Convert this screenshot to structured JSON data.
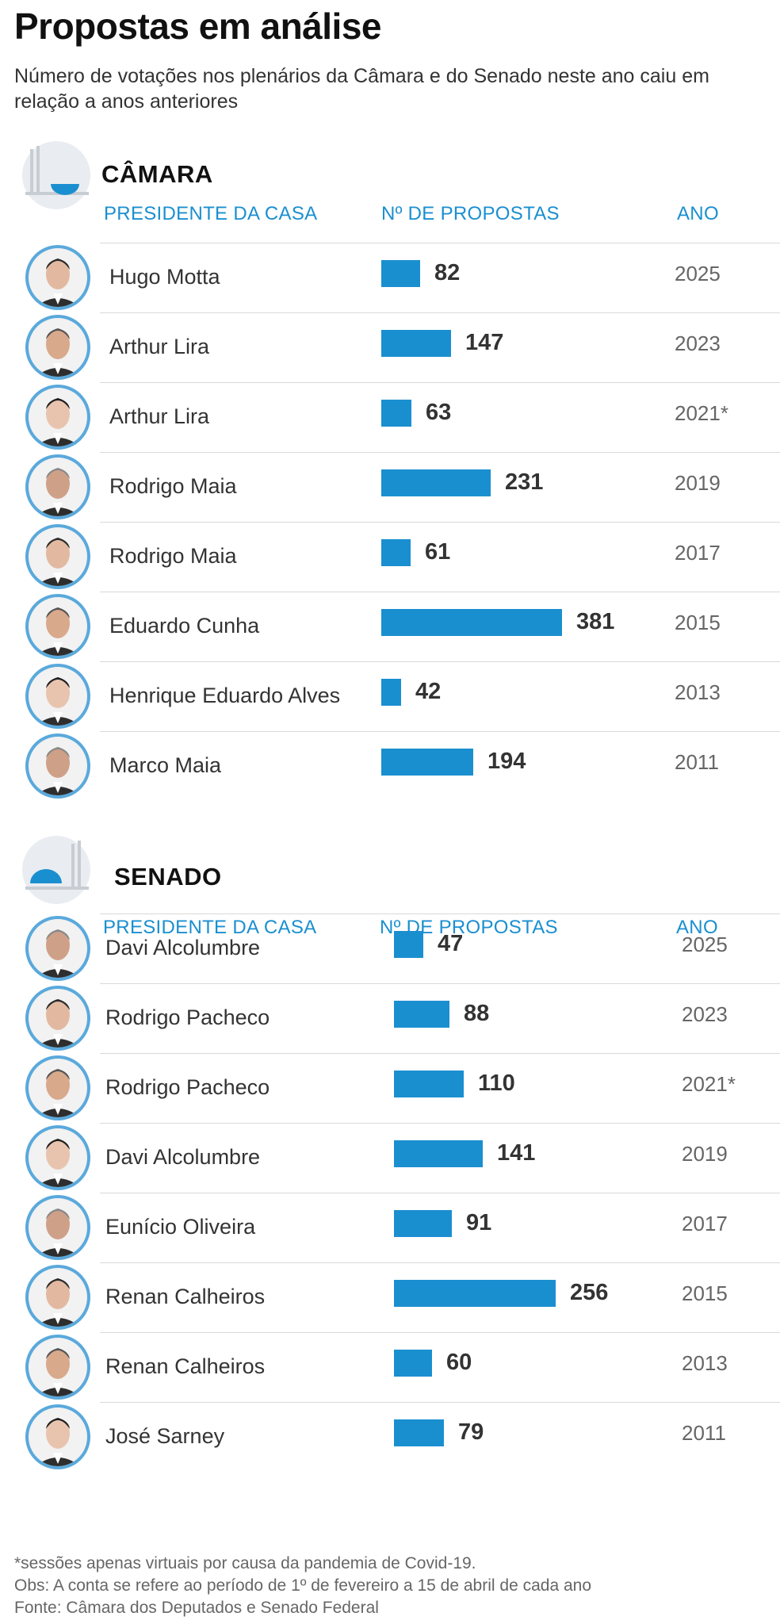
{
  "title": "Propostas em análise",
  "subtitle": "Número de votações nos plenários da Câmara e do Senado neste ano caiu em relação a anos anteriores",
  "colors": {
    "accent": "#1a8fd0",
    "text": "#333333",
    "separator": "#d9d9d9"
  },
  "chart_data": [
    {
      "type": "bar",
      "orientation": "horizontal",
      "title": "CÂMARA",
      "headers": {
        "president": "PRESIDENTE DA CASA",
        "count": "Nº DE PROPOSTAS",
        "year": "ANO"
      },
      "categories": [
        "Hugo Motta",
        "Arthur Lira",
        "Arthur Lira",
        "Rodrigo Maia",
        "Rodrigo Maia",
        "Eduardo Cunha",
        "Henrique Eduardo Alves",
        "Marco Maia"
      ],
      "years": [
        "2025",
        "2023",
        "2021*",
        "2019",
        "2017",
        "2015",
        "2013",
        "2011"
      ],
      "values": [
        82,
        147,
        63,
        231,
        61,
        381,
        42,
        194
      ],
      "xlim": [
        0,
        381
      ]
    },
    {
      "type": "bar",
      "orientation": "horizontal",
      "title": "SENADO",
      "headers": {
        "president": "PRESIDENTE DA CASA",
        "count": "Nº DE PROPOSTAS",
        "year": "ANO"
      },
      "categories": [
        "Davi Alcolumbre",
        "Rodrigo Pacheco",
        "Rodrigo Pacheco",
        "Davi Alcolumbre",
        "Eunício Oliveira",
        "Renan Calheiros",
        "Renan Calheiros",
        "José Sarney"
      ],
      "years": [
        "2025",
        "2023",
        "2021*",
        "2019",
        "2017",
        "2015",
        "2013",
        "2011"
      ],
      "values": [
        47,
        88,
        110,
        141,
        91,
        256,
        60,
        79
      ],
      "xlim": [
        0,
        256
      ]
    }
  ],
  "footnotes": [
    "*sessões apenas virtuais por causa da pandemia de Covid-19.",
    "Obs: A conta se refere ao período de 1º de fevereiro a 15 de abril de cada ano",
    "Fonte: Câmara dos Deputados e Senado Federal"
  ]
}
